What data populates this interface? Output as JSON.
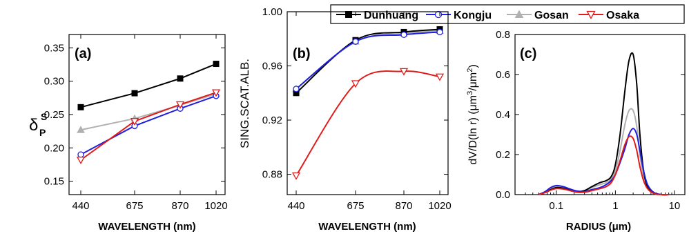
{
  "legend": {
    "entries": [
      {
        "name": "Dunhuang",
        "color": "#000000",
        "marker": "square-filled"
      },
      {
        "name": "Kongju",
        "color": "#1f1fe0",
        "marker": "circle-open"
      },
      {
        "name": "Gosan",
        "color": "#b0b0b0",
        "marker": "triangle-filled"
      },
      {
        "name": "Osaka",
        "color": "#e01b1b",
        "marker": "triangle-down-open"
      }
    ]
  },
  "chart_data": [
    {
      "type": "line",
      "panel_label": "(a)",
      "xlabel": "WAVELENGTH (nm)",
      "ylabel": "δPS",
      "ylabel_parts": {
        "main": "δ",
        "sub": "P",
        "sup": "S"
      },
      "x": [
        440,
        675,
        870,
        1020
      ],
      "x_ticks": [
        "440",
        "675",
        "870",
        "1020"
      ],
      "ylim": [
        0.13,
        0.37
      ],
      "y_ticks": [
        "0.15",
        "0.20",
        "0.25",
        "0.30",
        "0.35"
      ],
      "series": [
        {
          "name": "Dunhuang",
          "values": [
            0.261,
            0.282,
            0.304,
            0.326
          ]
        },
        {
          "name": "Kongju",
          "values": [
            0.19,
            0.233,
            0.259,
            0.278
          ]
        },
        {
          "name": "Gosan",
          "values": [
            0.227,
            0.244,
            0.264,
            0.281
          ]
        },
        {
          "name": "Osaka",
          "values": [
            0.182,
            0.24,
            0.265,
            0.283
          ]
        }
      ]
    },
    {
      "type": "line",
      "panel_label": "(b)",
      "xlabel": "WAVELENGTH (nm)",
      "ylabel": "SING.SCAT.ALB.",
      "x": [
        440,
        675,
        870,
        1020
      ],
      "x_ticks": [
        "440",
        "675",
        "870",
        "1020"
      ],
      "ylim": [
        0.865,
        1.0
      ],
      "y_ticks": [
        "0.88",
        "0.92",
        "0.96",
        "1.00"
      ],
      "series": [
        {
          "name": "Dunhuang",
          "values": [
            0.94,
            0.979,
            0.985,
            0.987
          ]
        },
        {
          "name": "Kongju",
          "values": [
            0.943,
            0.978,
            0.983,
            0.985
          ]
        },
        {
          "name": "Gosan",
          "values": [
            0.943,
            0.978,
            0.984,
            0.986
          ]
        },
        {
          "name": "Osaka",
          "values": [
            0.879,
            0.947,
            0.956,
            0.952
          ]
        }
      ]
    },
    {
      "type": "line",
      "panel_label": "(c)",
      "xlabel": "RADIUS (μm)",
      "ylabel": "dV/D(ln r) (μm³/μm²)",
      "ylabel_parts": {
        "pre": "dV/D(ln r) (μm",
        "sup1": "3",
        "mid": "/μm",
        "sup2": "2",
        "post": ")"
      },
      "x_scale": "log",
      "xlim": [
        0.02,
        15
      ],
      "x_ticks": [
        {
          "value": 0.1,
          "label": "0.1"
        },
        {
          "value": 1,
          "label": "1"
        },
        {
          "value": 10,
          "label": "10"
        }
      ],
      "ylim": [
        0,
        0.8
      ],
      "y_ticks": [
        "0.0",
        "0.2",
        "0.4",
        "0.6",
        "0.8"
      ],
      "x": [
        0.05,
        0.065,
        0.08,
        0.1,
        0.13,
        0.17,
        0.22,
        0.3,
        0.4,
        0.55,
        0.7,
        0.85,
        1.0,
        1.2,
        1.45,
        1.7,
        2.0,
        2.3,
        2.6,
        3.0,
        3.5,
        4.5,
        6.0,
        8.0
      ],
      "series": [
        {
          "name": "Dunhuang",
          "values": [
            0.0,
            0.012,
            0.025,
            0.035,
            0.032,
            0.022,
            0.015,
            0.02,
            0.04,
            0.06,
            0.07,
            0.09,
            0.15,
            0.3,
            0.52,
            0.67,
            0.7,
            0.55,
            0.3,
            0.12,
            0.04,
            0.01,
            0.0,
            0.0
          ]
        },
        {
          "name": "Kongju",
          "values": [
            0.0,
            0.015,
            0.035,
            0.045,
            0.04,
            0.028,
            0.018,
            0.015,
            0.025,
            0.035,
            0.05,
            0.07,
            0.1,
            0.16,
            0.23,
            0.3,
            0.33,
            0.3,
            0.22,
            0.12,
            0.05,
            0.01,
            0.0,
            0.0
          ]
        },
        {
          "name": "Gosan",
          "values": [
            0.0,
            0.012,
            0.028,
            0.038,
            0.035,
            0.025,
            0.018,
            0.02,
            0.035,
            0.05,
            0.06,
            0.08,
            0.12,
            0.22,
            0.35,
            0.42,
            0.42,
            0.34,
            0.2,
            0.09,
            0.03,
            0.005,
            0.0,
            0.0
          ]
        },
        {
          "name": "Osaka",
          "values": [
            0.0,
            0.01,
            0.022,
            0.03,
            0.028,
            0.02,
            0.012,
            0.012,
            0.02,
            0.03,
            0.04,
            0.06,
            0.1,
            0.17,
            0.25,
            0.29,
            0.28,
            0.22,
            0.14,
            0.07,
            0.03,
            0.005,
            0.0,
            0.0
          ]
        }
      ]
    }
  ]
}
